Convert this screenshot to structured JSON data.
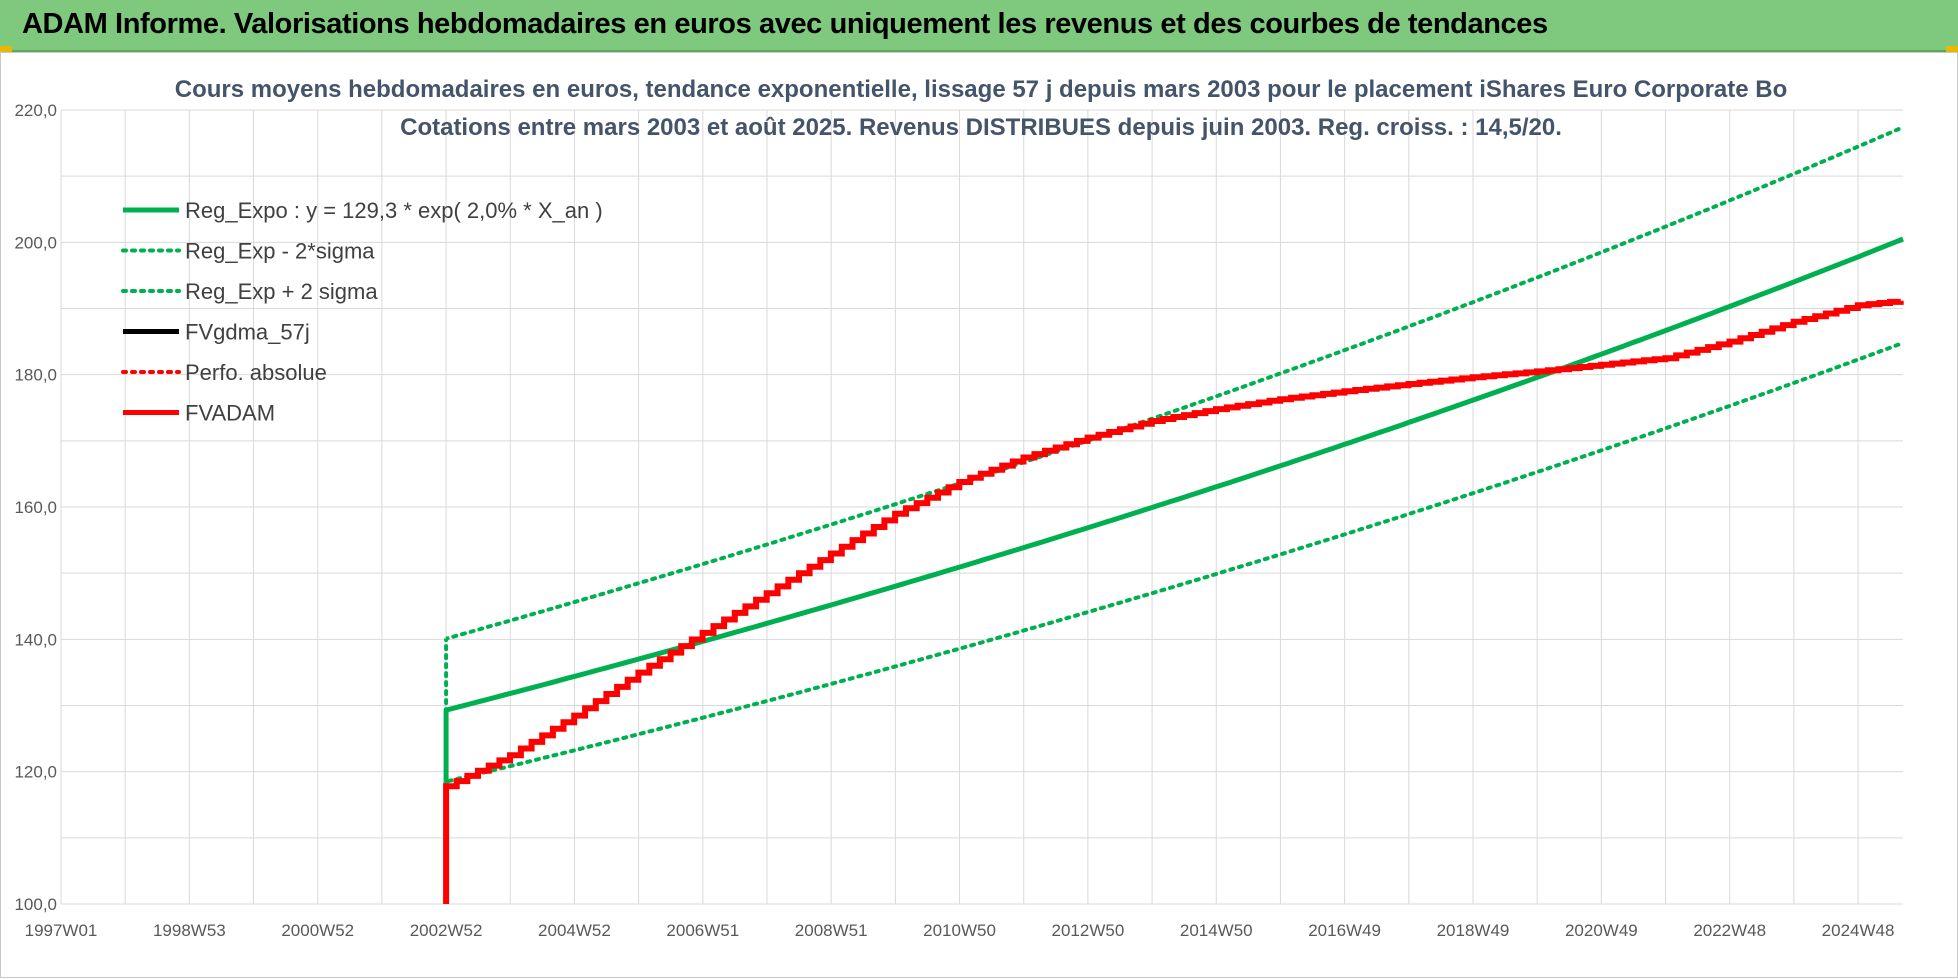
{
  "banner": {
    "title": "ADAM Informe. Valorisations hebdomadaires en euros avec uniquement les revenus et des courbes de tendances",
    "color": "#7ec97e"
  },
  "chart_data": {
    "type": "line",
    "title": "Cours moyens hebdomadaires en euros, tendance exponentielle, lissage 57 j depuis mars 2003 pour le placement iShares Euro Corporate Bo",
    "subtitle": "Cotations entre mars 2003 et août 2025.  Revenus DISTRIBUES depuis juin 2003.  Reg. croiss. : 14,5/20.",
    "xlabel": "",
    "ylabel": "",
    "ylim": [
      100,
      220
    ],
    "yticks": [
      "100,0",
      "120,0",
      "140,0",
      "160,0",
      "180,0",
      "200,0",
      "220,0"
    ],
    "xlim": [
      1997.0,
      2025.7
    ],
    "xticks": [
      {
        "label": "1997W01",
        "x": 1997.0
      },
      {
        "label": "1998W53",
        "x": 1999.0
      },
      {
        "label": "2000W52",
        "x": 2001.0
      },
      {
        "label": "2002W52",
        "x": 2003.0
      },
      {
        "label": "2004W52",
        "x": 2005.0
      },
      {
        "label": "2006W51",
        "x": 2007.0
      },
      {
        "label": "2008W51",
        "x": 2009.0
      },
      {
        "label": "2010W50",
        "x": 2011.0
      },
      {
        "label": "2012W50",
        "x": 2013.0
      },
      {
        "label": "2014W50",
        "x": 2015.0
      },
      {
        "label": "2016W49",
        "x": 2017.0
      },
      {
        "label": "2018W49",
        "x": 2019.0
      },
      {
        "label": "2020W49",
        "x": 2021.0
      },
      {
        "label": "2022W48",
        "x": 2023.0
      },
      {
        "label": "2024W48",
        "x": 2025.0
      }
    ],
    "grid": true,
    "legend_position": "top-left",
    "series": [
      {
        "name": "Reg_Expo : y = 129,3 * exp( 2,0% *  X_an )",
        "color": "#00b050",
        "style": "solid",
        "width": 5,
        "x": [
          2003.0,
          2003.0,
          2025.7
        ],
        "y": [
          118.0,
          129.3,
          200.5
        ]
      },
      {
        "name": "Reg_Exp - 2*sigma",
        "color": "#00b050",
        "style": "dotted",
        "width": 4,
        "x": [
          2003.0,
          2003.0,
          2025.7
        ],
        "y": [
          129.0,
          118.5,
          184.8
        ]
      },
      {
        "name": "Reg_Exp + 2 sigma",
        "color": "#00b050",
        "style": "dotted",
        "width": 4,
        "x": [
          2003.0,
          2003.0,
          2025.7
        ],
        "y": [
          129.0,
          140.1,
          217.4
        ]
      },
      {
        "name": "FVgdma_57j",
        "color": "#000000",
        "style": "solid",
        "width": 4,
        "x": [],
        "y": []
      },
      {
        "name": "Perfo. absolue",
        "color": "#ff0000",
        "style": "dotted",
        "width": 4,
        "x": [],
        "y": []
      },
      {
        "name": "FVADAM",
        "color": "#ff0000",
        "style": "stepped",
        "width": 6,
        "x": [
          2003.0,
          2003.0,
          2004.0,
          2005.0,
          2006.0,
          2007.0,
          2008.0,
          2009.0,
          2010.0,
          2011.0,
          2012.0,
          2013.0,
          2014.0,
          2015.0,
          2016.0,
          2017.0,
          2018.0,
          2019.0,
          2020.0,
          2021.0,
          2022.0,
          2023.0,
          2024.0,
          2025.0,
          2025.7
        ],
        "y": [
          100.0,
          117.8,
          122.5,
          128.5,
          135.0,
          141.0,
          147.0,
          153.0,
          159.0,
          163.8,
          167.5,
          170.5,
          173.0,
          174.8,
          176.3,
          177.5,
          178.6,
          179.6,
          180.5,
          181.5,
          182.5,
          185.0,
          188.0,
          190.5,
          191.2
        ]
      }
    ]
  }
}
